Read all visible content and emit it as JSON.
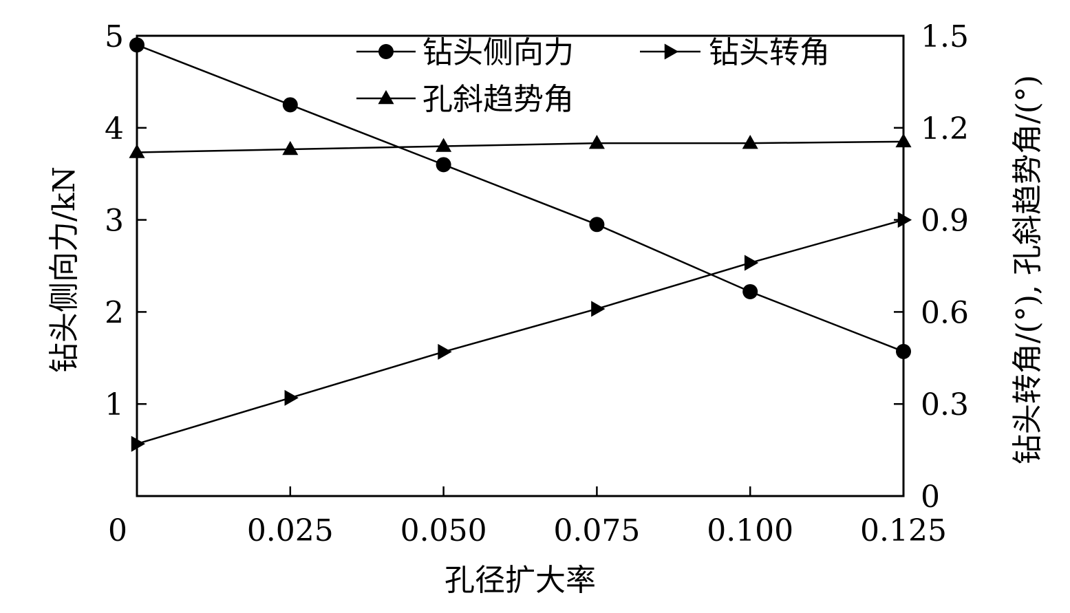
{
  "chart_data": {
    "type": "line",
    "xlabel": "孔径扩大率",
    "ylabel_left": "钻头侧向力/kN",
    "ylabel_right": "钻头转角/(°), 孔斜趋势角/(°)",
    "x_ticks": [
      "0",
      "0.025",
      "0.050",
      "0.075",
      "0.100",
      "0.125"
    ],
    "y_left_ticks": [
      "1",
      "2",
      "3",
      "4",
      "5"
    ],
    "y_right_ticks": [
      "0",
      "0.3",
      "0.6",
      "0.9",
      "1.2",
      "1.5"
    ],
    "xlim": [
      0,
      0.125
    ],
    "ylim_left": [
      0,
      5
    ],
    "ylim_right": [
      0,
      1.5
    ],
    "grid": false,
    "legend_position": "top-right",
    "x": [
      0,
      0.025,
      0.05,
      0.075,
      0.1,
      0.125
    ],
    "series": [
      {
        "name": "钻头侧向力",
        "axis": "left",
        "marker": "circle",
        "values": [
          4.9,
          4.25,
          3.6,
          2.95,
          2.22,
          1.57
        ]
      },
      {
        "name": "钻头转角",
        "axis": "right",
        "marker": "triangle-right",
        "values": [
          0.17,
          0.32,
          0.47,
          0.61,
          0.76,
          0.9
        ]
      },
      {
        "name": "孔斜趋势角",
        "axis": "right",
        "marker": "triangle-up",
        "values": [
          1.12,
          1.13,
          1.14,
          1.15,
          1.15,
          1.155
        ]
      }
    ]
  }
}
